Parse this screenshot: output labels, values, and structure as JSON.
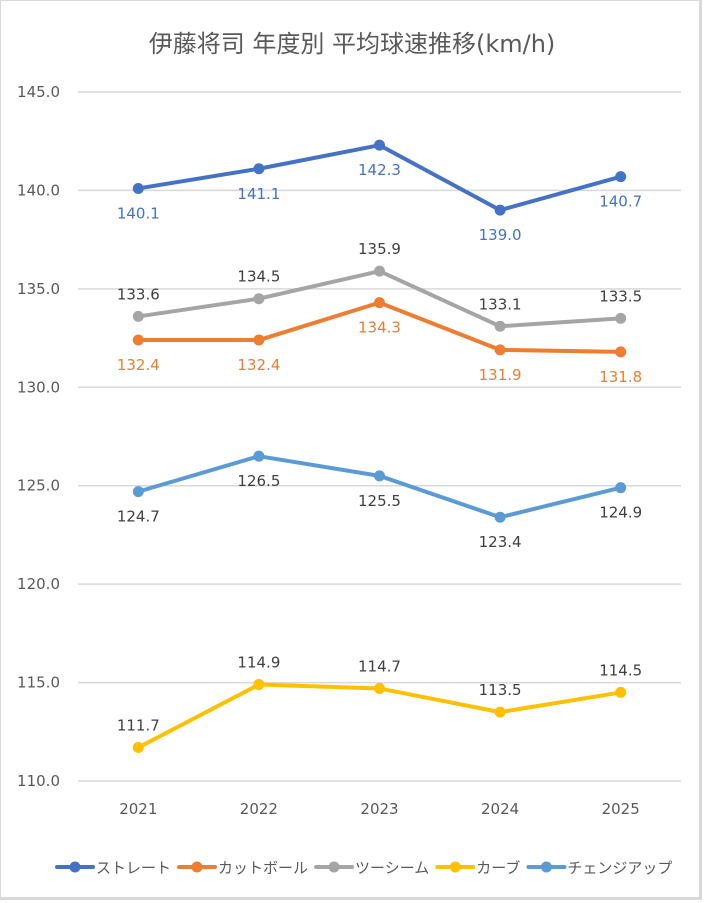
{
  "chart_data": {
    "type": "line",
    "title": "伊藤将司 年度別 平均球速推移(km/h)",
    "xlabel": "",
    "ylabel": "",
    "categories": [
      "2021",
      "2022",
      "2023",
      "2024",
      "2025"
    ],
    "ylim": [
      110.0,
      145.0
    ],
    "yticks": [
      "110.0",
      "115.0",
      "120.0",
      "125.0",
      "130.0",
      "135.0",
      "140.0",
      "145.0"
    ],
    "grid": true,
    "legend_position": "bottom",
    "series": [
      {
        "name": "ストレート",
        "color": "#4472c4",
        "label_color": "#4472c4",
        "values": [
          140.1,
          141.1,
          142.3,
          139.0,
          140.7
        ],
        "labels": [
          "140.1",
          "141.1",
          "142.3",
          "139.0",
          "140.7"
        ],
        "label_pos": [
          "below",
          "below",
          "below",
          "below",
          "below"
        ]
      },
      {
        "name": "カットボール",
        "color": "#ed7d31",
        "label_color": "#ed7d31",
        "values": [
          132.4,
          132.4,
          134.3,
          131.9,
          131.8
        ],
        "labels": [
          "132.4",
          "132.4",
          "134.3",
          "131.9",
          "131.8"
        ],
        "label_pos": [
          "below",
          "below",
          "below",
          "below",
          "below"
        ]
      },
      {
        "name": "ツーシーム",
        "color": "#a5a5a5",
        "label_color": "#404040",
        "values": [
          133.6,
          134.5,
          135.9,
          133.1,
          133.5
        ],
        "labels": [
          "133.6",
          "134.5",
          "135.9",
          "133.1",
          "133.5"
        ],
        "label_pos": [
          "above",
          "above",
          "above",
          "above",
          "above"
        ]
      },
      {
        "name": "カーブ",
        "color": "#ffc000",
        "label_color": "#404040",
        "values": [
          111.7,
          114.9,
          114.7,
          113.5,
          114.5
        ],
        "labels": [
          "111.7",
          "114.9",
          "114.7",
          "113.5",
          "114.5"
        ],
        "label_pos": [
          "above",
          "above",
          "above",
          "above",
          "above"
        ]
      },
      {
        "name": "チェンジアップ",
        "color": "#5b9bd5",
        "label_color": "#404040",
        "values": [
          124.7,
          126.5,
          125.5,
          123.4,
          124.9
        ],
        "labels": [
          "124.7",
          "126.5",
          "125.5",
          "123.4",
          "124.9"
        ],
        "label_pos": [
          "below",
          "below",
          "below",
          "below",
          "below"
        ]
      }
    ]
  }
}
